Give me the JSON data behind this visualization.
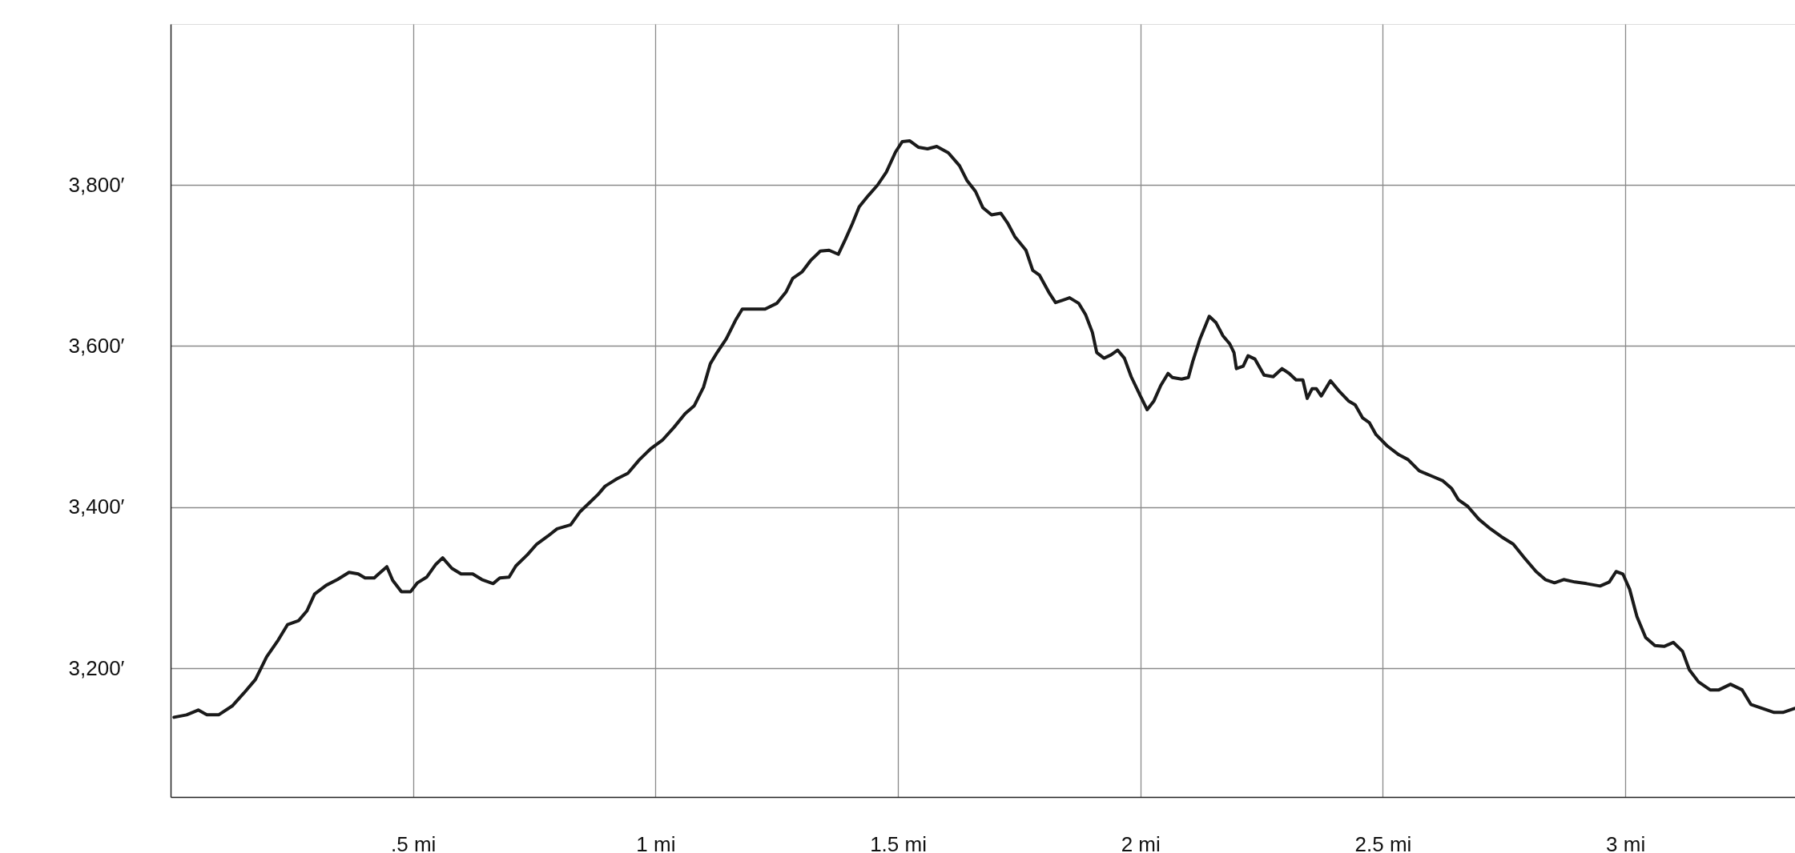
{
  "chart_data": {
    "type": "line",
    "x": [
      0.007,
      0.033,
      0.057,
      0.075,
      0.099,
      0.127,
      0.151,
      0.175,
      0.198,
      0.222,
      0.241,
      0.264,
      0.281,
      0.297,
      0.321,
      0.344,
      0.368,
      0.387,
      0.401,
      0.42,
      0.429,
      0.446,
      0.458,
      0.476,
      0.495,
      0.509,
      0.528,
      0.547,
      0.561,
      0.58,
      0.599,
      0.623,
      0.642,
      0.665,
      0.679,
      0.698,
      0.712,
      0.736,
      0.755,
      0.778,
      0.797,
      0.825,
      0.844,
      0.863,
      0.882,
      0.896,
      0.92,
      0.943,
      0.967,
      0.991,
      1.014,
      1.038,
      1.061,
      1.08,
      1.099,
      1.113,
      1.127,
      1.146,
      1.165,
      1.179,
      1.203,
      1.226,
      1.25,
      1.269,
      1.283,
      1.302,
      1.321,
      1.34,
      1.358,
      1.377,
      1.392,
      1.406,
      1.42,
      1.439,
      1.458,
      1.476,
      1.495,
      1.509,
      1.524,
      1.542,
      1.561,
      1.58,
      1.604,
      1.627,
      1.642,
      1.66,
      1.675,
      1.693,
      1.712,
      1.726,
      1.741,
      1.764,
      1.778,
      1.792,
      1.811,
      1.825,
      1.84,
      1.854,
      1.873,
      1.887,
      1.901,
      1.91,
      1.925,
      1.939,
      1.953,
      1.967,
      1.981,
      2.0,
      2.014,
      2.028,
      2.042,
      2.057,
      2.066,
      2.085,
      2.099,
      2.108,
      2.123,
      2.142,
      2.156,
      2.17,
      2.184,
      2.193,
      2.198,
      2.212,
      2.222,
      2.236,
      2.255,
      2.274,
      2.292,
      2.307,
      2.321,
      2.335,
      2.344,
      2.354,
      2.363,
      2.373,
      2.392,
      2.41,
      2.429,
      2.443,
      2.458,
      2.472,
      2.486,
      2.509,
      2.533,
      2.552,
      2.575,
      2.599,
      2.623,
      2.642,
      2.656,
      2.675,
      2.698,
      2.722,
      2.745,
      2.769,
      2.792,
      2.816,
      2.835,
      2.854,
      2.873,
      2.896,
      2.92,
      2.948,
      2.967,
      2.981,
      2.995,
      3.009,
      3.024,
      3.042,
      3.061,
      3.08,
      3.099,
      3.118,
      3.132,
      3.151,
      3.175,
      3.193,
      3.217,
      3.241,
      3.259,
      3.283,
      3.307,
      3.325,
      3.349
    ],
    "series": [
      {
        "color": "#1a1a1a",
        "values": [
          3139,
          3142,
          3148,
          3142,
          3142,
          3153,
          3169,
          3186,
          3214,
          3235,
          3254,
          3259,
          3271,
          3292,
          3303,
          3310,
          3319,
          3317,
          3312,
          3312,
          3317,
          3326,
          3309,
          3295,
          3295,
          3306,
          3313,
          3329,
          3337,
          3324,
          3317,
          3317,
          3310,
          3305,
          3312,
          3313,
          3327,
          3341,
          3354,
          3364,
          3373,
          3378,
          3394,
          3405,
          3416,
          3426,
          3435,
          3442,
          3459,
          3473,
          3483,
          3499,
          3516,
          3526,
          3549,
          3578,
          3592,
          3609,
          3632,
          3646,
          3646,
          3646,
          3653,
          3667,
          3684,
          3692,
          3707,
          3718,
          3719,
          3714,
          3733,
          3752,
          3773,
          3787,
          3800,
          3816,
          3841,
          3854,
          3855,
          3847,
          3845,
          3848,
          3840,
          3824,
          3806,
          3792,
          3772,
          3763,
          3765,
          3753,
          3736,
          3719,
          3694,
          3688,
          3667,
          3654,
          3657,
          3660,
          3653,
          3639,
          3617,
          3592,
          3585,
          3589,
          3595,
          3585,
          3562,
          3538,
          3521,
          3532,
          3551,
          3566,
          3561,
          3559,
          3561,
          3581,
          3609,
          3637,
          3629,
          3613,
          3603,
          3592,
          3572,
          3575,
          3588,
          3584,
          3564,
          3562,
          3572,
          3566,
          3558,
          3558,
          3535,
          3547,
          3547,
          3538,
          3557,
          3544,
          3532,
          3527,
          3511,
          3505,
          3490,
          3476,
          3465,
          3459,
          3445,
          3439,
          3433,
          3423,
          3409,
          3401,
          3385,
          3373,
          3363,
          3354,
          3337,
          3320,
          3310,
          3306,
          3310,
          3307,
          3305,
          3302,
          3307,
          3320,
          3317,
          3298,
          3264,
          3238,
          3228,
          3227,
          3232,
          3221,
          3198,
          3183,
          3173,
          3173,
          3180,
          3173,
          3155,
          3150,
          3145,
          3145,
          3150
        ]
      }
    ],
    "xlim": [
      0,
      3.35
    ],
    "ylim": [
      3040,
      4000
    ],
    "xticks": [
      {
        "value": 0.5,
        "label": ".5 mi"
      },
      {
        "value": 1,
        "label": "1 mi"
      },
      {
        "value": 1.5,
        "label": "1.5 mi"
      },
      {
        "value": 2,
        "label": "2 mi"
      },
      {
        "value": 2.5,
        "label": "2.5 mi"
      },
      {
        "value": 3,
        "label": "3 mi"
      }
    ],
    "yticks": [
      {
        "value": 3200,
        "label": "3,200′"
      },
      {
        "value": 3400,
        "label": "3,400′"
      },
      {
        "value": 3600,
        "label": "3,600′"
      },
      {
        "value": 3800,
        "label": "3,800′"
      }
    ],
    "grid": true,
    "marker": "none",
    "line_style": "solid"
  }
}
